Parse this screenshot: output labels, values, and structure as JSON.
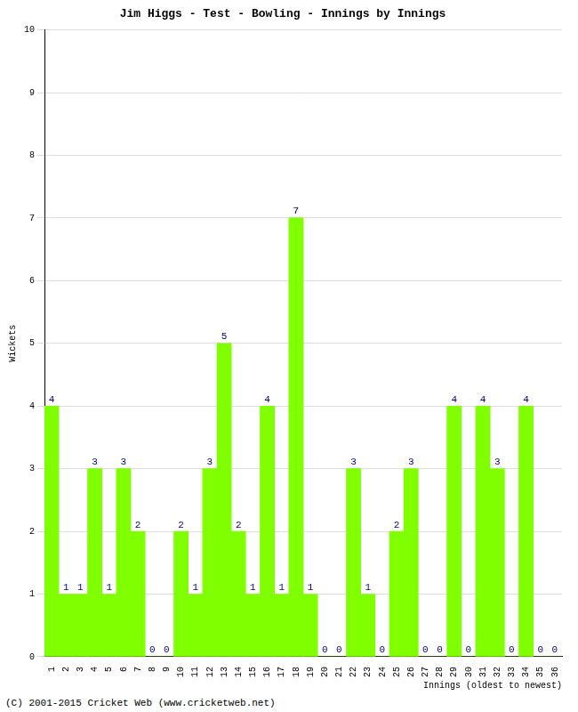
{
  "chart_data": {
    "type": "bar",
    "title": "Jim Higgs - Test - Bowling - Innings by Innings",
    "x_label": "Innings (oldest to newest)",
    "y_label": "Wickets",
    "annotations": [
      "(C) 2001-2015 Cricket Web (www.cricketweb.net)"
    ],
    "categories": [
      "1",
      "2",
      "3",
      "4",
      "5",
      "6",
      "7",
      "8",
      "9",
      "10",
      "11",
      "12",
      "13",
      "14",
      "15",
      "16",
      "17",
      "18",
      "19",
      "20",
      "21",
      "22",
      "23",
      "24",
      "25",
      "26",
      "27",
      "28",
      "29",
      "30",
      "31",
      "32",
      "33",
      "34",
      "35",
      "36"
    ],
    "values": [
      4,
      1,
      1,
      3,
      1,
      3,
      2,
      0,
      0,
      2,
      1,
      3,
      5,
      2,
      1,
      4,
      1,
      7,
      1,
      0,
      0,
      3,
      1,
      0,
      2,
      3,
      0,
      0,
      4,
      0,
      4,
      3,
      0,
      4,
      0,
      0
    ],
    "color": "#80ff00",
    "ylim": [
      0,
      10
    ],
    "yticks": [
      0,
      1,
      2,
      3,
      4,
      5,
      6,
      7,
      8,
      9,
      10
    ],
    "grid": true,
    "data_labels": true
  }
}
